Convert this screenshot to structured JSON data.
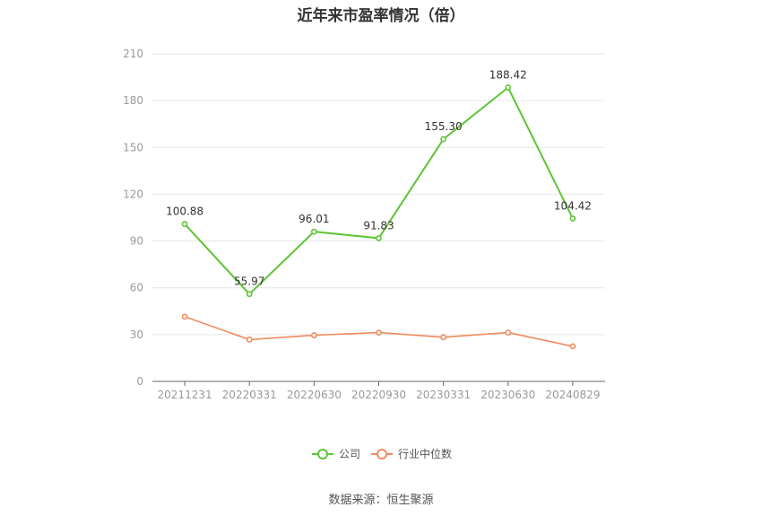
{
  "chart_data": {
    "type": "line",
    "title": "近年来市盈率情况（倍）",
    "categories": [
      "20211231",
      "20220331",
      "20220630",
      "20220930",
      "20230331",
      "20230630",
      "20240829"
    ],
    "series": [
      {
        "name": "公司",
        "color": "#5ec434",
        "values": [
          100.88,
          55.97,
          96.01,
          91.83,
          155.3,
          188.42,
          104.42
        ],
        "labels": [
          "100.88",
          "55.97",
          "96.01",
          "91.83",
          "155.30",
          "188.42",
          "104.42"
        ]
      },
      {
        "name": "行业中位数",
        "color": "#f08a5d",
        "values": [
          41.5,
          26.8,
          29.6,
          31.3,
          28.3,
          31.3,
          22.5
        ]
      }
    ],
    "yticks": [
      "0",
      "30",
      "60",
      "90",
      "120",
      "150",
      "180",
      "210"
    ],
    "ylim": [
      0,
      210
    ],
    "grid": true,
    "legend_position": "bottom-center"
  },
  "source": "数据来源：恒生聚源"
}
